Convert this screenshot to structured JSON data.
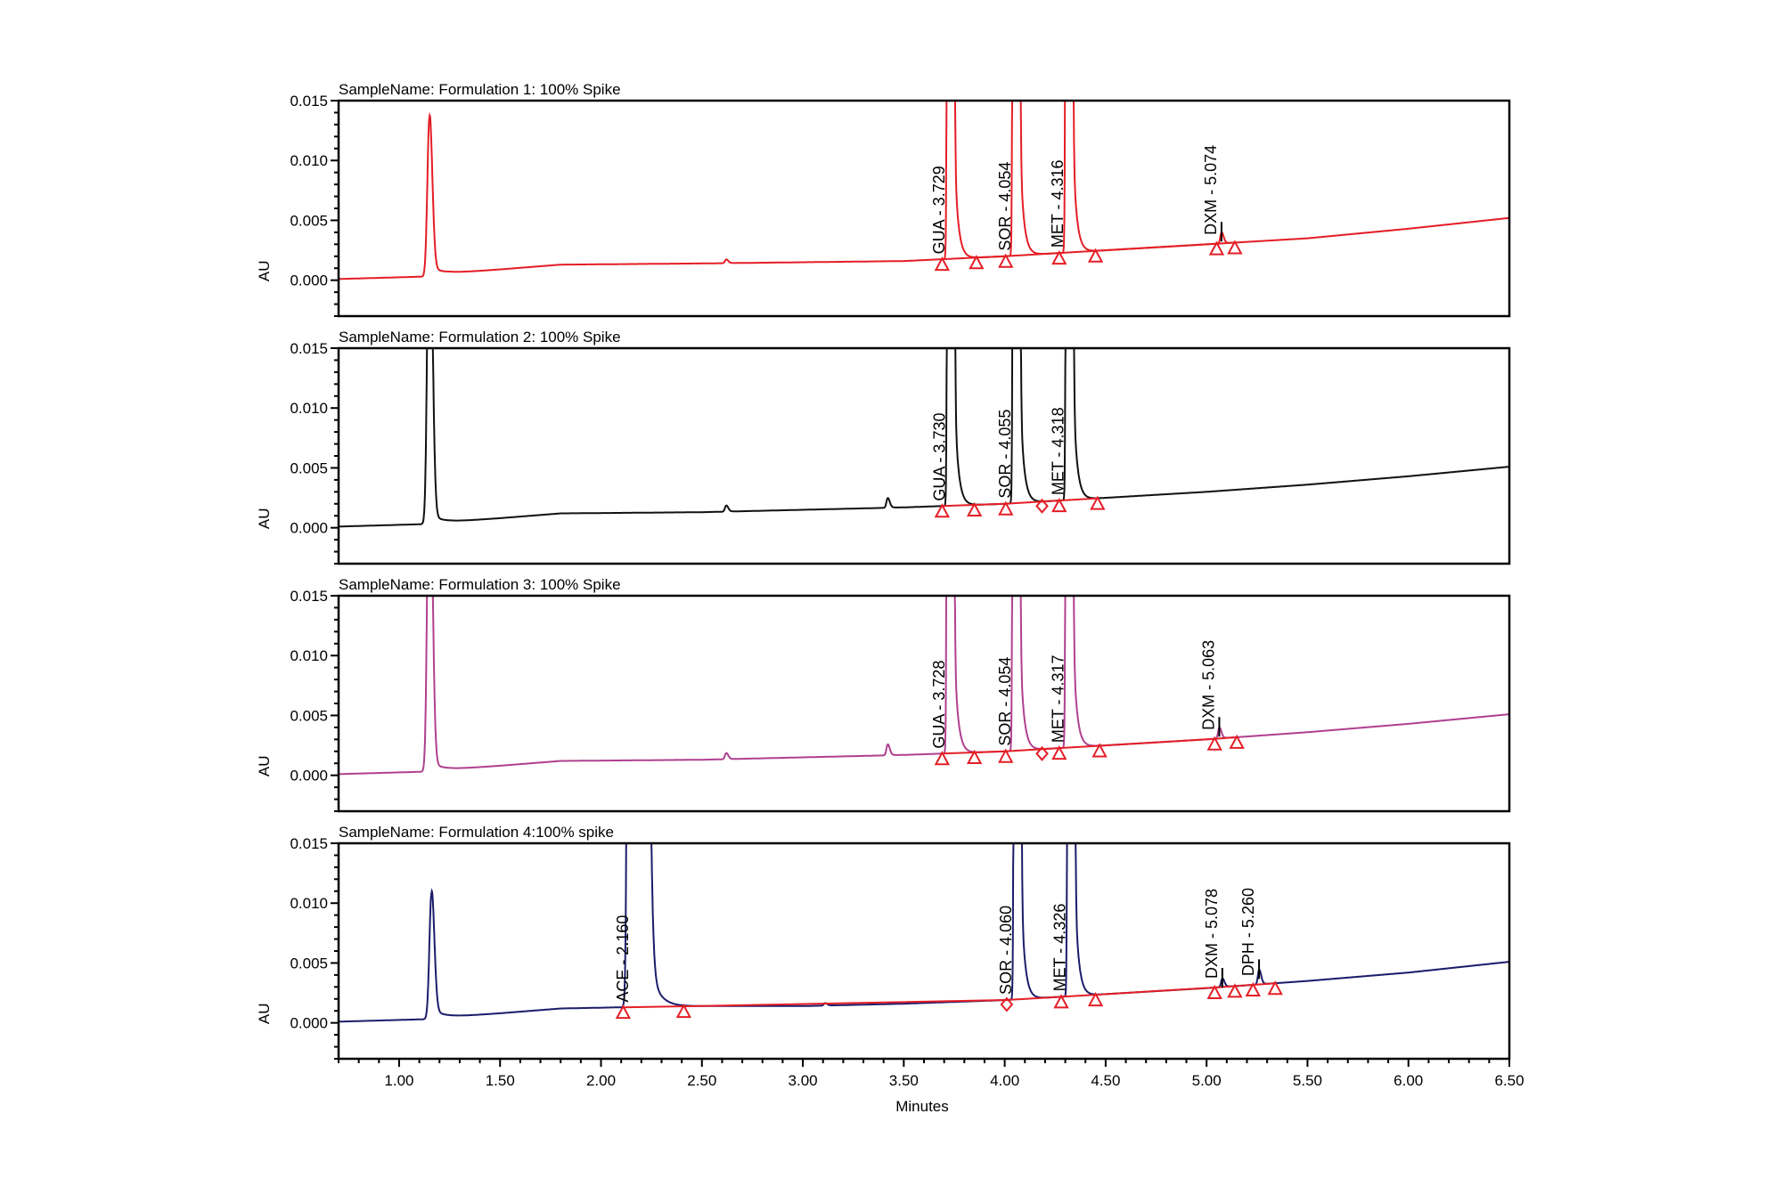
{
  "chart_data": {
    "type": "line",
    "layout": "4 stacked panels, shared x axis",
    "xlabel": "Minutes",
    "xlim": [
      0.7,
      6.5
    ],
    "x_ticks": [
      "1.00",
      "1.50",
      "2.00",
      "2.50",
      "3.00",
      "3.50",
      "4.00",
      "4.50",
      "5.00",
      "5.50",
      "6.00",
      "6.50"
    ],
    "y_ticks": [
      "0.015",
      "0.010",
      "0.005",
      "0.000"
    ],
    "grid": false,
    "integration_color": "#e41e26",
    "panels": [
      {
        "title": "SampleName: Formulation 1: 100% Spike",
        "ylabel": "AU",
        "ylim": [
          -0.003,
          0.015
        ],
        "color": "#e41e26",
        "baseline": [
          [
            0.7,
            0.0001
          ],
          [
            1.12,
            0.0003
          ],
          [
            1.25,
            0.0006
          ],
          [
            1.5,
            0.0009
          ],
          [
            1.8,
            0.0013
          ],
          [
            2.5,
            0.0014
          ],
          [
            3.5,
            0.0016
          ],
          [
            4.0,
            0.002
          ],
          [
            4.5,
            0.0025
          ],
          [
            5.0,
            0.003
          ],
          [
            5.5,
            0.0035
          ],
          [
            6.0,
            0.0043
          ],
          [
            6.5,
            0.0052
          ]
        ],
        "peaks": [
          {
            "time": 1.15,
            "height": 0.0132,
            "kind": "void"
          },
          {
            "time": 2.62,
            "height": 0.0003,
            "kind": "small"
          },
          {
            "time": 3.729,
            "height": "off-scale",
            "kind": "major",
            "label": "GUA - 3.729"
          },
          {
            "time": 4.054,
            "height": "off-scale",
            "kind": "major",
            "label": "SOR - 4.054"
          },
          {
            "time": 4.316,
            "height": "off-scale",
            "kind": "major",
            "label": "MET - 4.316"
          },
          {
            "time": 5.074,
            "height": 0.0009,
            "kind": "small",
            "label": "DXM - 5.074"
          }
        ],
        "markers": [
          {
            "time": 3.69,
            "shape": "triangle"
          },
          {
            "time": 3.86,
            "shape": "triangle"
          },
          {
            "time": 4.005,
            "shape": "triangle"
          },
          {
            "time": 4.27,
            "shape": "triangle"
          },
          {
            "time": 4.45,
            "shape": "triangle"
          },
          {
            "time": 5.05,
            "shape": "triangle"
          },
          {
            "time": 5.14,
            "shape": "triangle"
          }
        ]
      },
      {
        "title": "SampleName: Formulation 2: 100% Spike",
        "ylabel": "AU",
        "ylim": [
          -0.003,
          0.015
        ],
        "color": "#111111",
        "baseline": [
          [
            0.7,
            0.0001
          ],
          [
            1.12,
            0.0003
          ],
          [
            1.25,
            0.0005
          ],
          [
            1.5,
            0.0008
          ],
          [
            1.8,
            0.0012
          ],
          [
            2.5,
            0.0013
          ],
          [
            3.5,
            0.0017
          ],
          [
            4.0,
            0.002
          ],
          [
            4.5,
            0.0025
          ],
          [
            5.0,
            0.003
          ],
          [
            5.5,
            0.0036
          ],
          [
            6.0,
            0.0043
          ],
          [
            6.5,
            0.0051
          ]
        ],
        "peaks": [
          {
            "time": 1.15,
            "height": "off-scale",
            "kind": "void"
          },
          {
            "time": 2.62,
            "height": 0.0005,
            "kind": "small"
          },
          {
            "time": 3.42,
            "height": 0.0008,
            "kind": "small"
          },
          {
            "time": 3.73,
            "height": "off-scale",
            "kind": "major",
            "label": "GUA - 3.730"
          },
          {
            "time": 4.055,
            "height": "off-scale",
            "kind": "major",
            "label": "SOR - 4.055"
          },
          {
            "time": 4.318,
            "height": "off-scale",
            "kind": "major",
            "label": "MET - 4.318"
          }
        ],
        "markers": [
          {
            "time": 3.69,
            "shape": "triangle"
          },
          {
            "time": 3.85,
            "shape": "triangle"
          },
          {
            "time": 4.005,
            "shape": "triangle"
          },
          {
            "time": 4.185,
            "shape": "diamond"
          },
          {
            "time": 4.27,
            "shape": "triangle"
          },
          {
            "time": 4.46,
            "shape": "triangle"
          }
        ]
      },
      {
        "title": "SampleName: Formulation 3: 100% Spike",
        "ylabel": "AU",
        "ylim": [
          -0.003,
          0.015
        ],
        "color": "#b0408f",
        "baseline": [
          [
            0.7,
            0.0001
          ],
          [
            1.12,
            0.0003
          ],
          [
            1.25,
            0.0005
          ],
          [
            1.5,
            0.0008
          ],
          [
            1.8,
            0.0012
          ],
          [
            2.5,
            0.0013
          ],
          [
            3.5,
            0.0017
          ],
          [
            4.0,
            0.002
          ],
          [
            4.5,
            0.0025
          ],
          [
            5.0,
            0.003
          ],
          [
            5.5,
            0.0036
          ],
          [
            6.0,
            0.0043
          ],
          [
            6.5,
            0.0051
          ]
        ],
        "peaks": [
          {
            "time": 1.15,
            "height": "off-scale",
            "kind": "void"
          },
          {
            "time": 2.62,
            "height": 0.0005,
            "kind": "small"
          },
          {
            "time": 3.42,
            "height": 0.0009,
            "kind": "small"
          },
          {
            "time": 3.728,
            "height": "off-scale",
            "kind": "major",
            "label": "GUA - 3.728"
          },
          {
            "time": 4.054,
            "height": "off-scale",
            "kind": "major",
            "label": "SOR - 4.054"
          },
          {
            "time": 4.317,
            "height": "off-scale",
            "kind": "major",
            "label": "MET - 4.317"
          },
          {
            "time": 5.063,
            "height": 0.0009,
            "kind": "small",
            "label": "DXM - 5.063"
          }
        ],
        "markers": [
          {
            "time": 3.69,
            "shape": "triangle"
          },
          {
            "time": 3.85,
            "shape": "triangle"
          },
          {
            "time": 4.005,
            "shape": "triangle"
          },
          {
            "time": 4.185,
            "shape": "diamond"
          },
          {
            "time": 4.27,
            "shape": "triangle"
          },
          {
            "time": 4.47,
            "shape": "triangle"
          },
          {
            "time": 5.04,
            "shape": "triangle"
          },
          {
            "time": 5.15,
            "shape": "triangle"
          }
        ]
      },
      {
        "title": "SampleName: Formulation 4:100% spike",
        "ylabel": "AU",
        "ylim": [
          -0.003,
          0.015
        ],
        "color": "#1c1c6b",
        "baseline": [
          [
            0.7,
            0.0001
          ],
          [
            1.12,
            0.0003
          ],
          [
            1.25,
            0.0005
          ],
          [
            1.5,
            0.0008
          ],
          [
            1.8,
            0.0012
          ],
          [
            2.1,
            0.0013
          ],
          [
            2.5,
            0.0014
          ],
          [
            3.0,
            0.0014
          ],
          [
            3.5,
            0.0016
          ],
          [
            4.0,
            0.0019
          ],
          [
            4.5,
            0.0024
          ],
          [
            5.0,
            0.0029
          ],
          [
            5.5,
            0.0035
          ],
          [
            6.0,
            0.0042
          ],
          [
            6.5,
            0.0051
          ]
        ],
        "peaks": [
          {
            "time": 1.16,
            "height": 0.0104,
            "kind": "void"
          },
          {
            "time": 2.16,
            "height": "off-scale",
            "kind": "wide",
            "label": "ACE - 2.160"
          },
          {
            "time": 3.11,
            "height": 0.0002,
            "kind": "small"
          },
          {
            "time": 4.06,
            "height": "off-scale",
            "kind": "major",
            "label": "SOR - 4.060"
          },
          {
            "time": 4.326,
            "height": "off-scale",
            "kind": "major",
            "label": "MET - 4.326"
          },
          {
            "time": 5.078,
            "height": 0.0007,
            "kind": "small",
            "label": "DXM - 5.078"
          },
          {
            "time": 5.26,
            "height": 0.0012,
            "kind": "small",
            "label": "DPH - 5.260"
          }
        ],
        "markers": [
          {
            "time": 2.11,
            "shape": "triangle"
          },
          {
            "time": 2.41,
            "shape": "triangle"
          },
          {
            "time": 4.01,
            "shape": "diamond"
          },
          {
            "time": 4.28,
            "shape": "triangle"
          },
          {
            "time": 4.45,
            "shape": "triangle"
          },
          {
            "time": 5.04,
            "shape": "triangle"
          },
          {
            "time": 5.14,
            "shape": "triangle"
          },
          {
            "time": 5.23,
            "shape": "triangle"
          },
          {
            "time": 5.34,
            "shape": "triangle"
          }
        ]
      }
    ]
  }
}
